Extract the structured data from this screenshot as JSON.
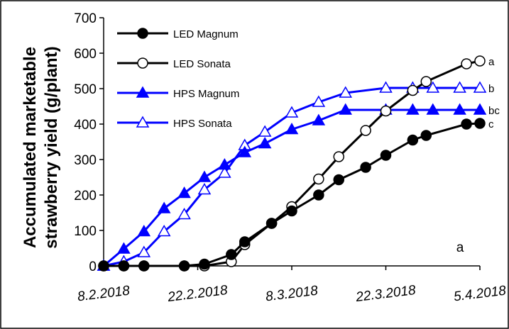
{
  "chart_data": {
    "type": "line",
    "title": "",
    "xlabel": "",
    "ylabel_lines": [
      "Accumulated marketable",
      "strawberry yield (g/plant)"
    ],
    "ylim": [
      0,
      700
    ],
    "yticks": [
      0,
      100,
      200,
      300,
      400,
      500,
      600,
      700
    ],
    "xlim": [
      "2018-02-08",
      "2018-04-05"
    ],
    "xticks": [
      {
        "date": "2018-02-08",
        "label": "8.2.2018"
      },
      {
        "date": "2018-02-22",
        "label": "22.2.2018"
      },
      {
        "date": "2018-03-08",
        "label": "8.3.2018"
      },
      {
        "date": "2018-03-22",
        "label": "22.3.2018"
      },
      {
        "date": "2018-04-05",
        "label": "5.4.2018"
      }
    ],
    "grid": false,
    "legend": "top-left",
    "panel_label": "a",
    "series": [
      {
        "name": "LED Magnum",
        "color": "#000000",
        "marker": "circle",
        "filled": true,
        "end_label": "c",
        "points": [
          {
            "x": "2018-02-08",
            "y": 0
          },
          {
            "x": "2018-02-11",
            "y": 0
          },
          {
            "x": "2018-02-14",
            "y": 0
          },
          {
            "x": "2018-02-20",
            "y": 0
          },
          {
            "x": "2018-02-23",
            "y": 5
          },
          {
            "x": "2018-02-27",
            "y": 32
          },
          {
            "x": "2018-03-01",
            "y": 68
          },
          {
            "x": "2018-03-05",
            "y": 120
          },
          {
            "x": "2018-03-08",
            "y": 155
          },
          {
            "x": "2018-03-12",
            "y": 200
          },
          {
            "x": "2018-03-15",
            "y": 243
          },
          {
            "x": "2018-03-19",
            "y": 278
          },
          {
            "x": "2018-03-22",
            "y": 312
          },
          {
            "x": "2018-03-26",
            "y": 355
          },
          {
            "x": "2018-03-28",
            "y": 368
          },
          {
            "x": "2018-04-03",
            "y": 400
          },
          {
            "x": "2018-04-05",
            "y": 402
          }
        ]
      },
      {
        "name": "LED Sonata",
        "color": "#000000",
        "marker": "circle",
        "filled": false,
        "end_label": "a",
        "points": [
          {
            "x": "2018-02-08",
            "y": 0
          },
          {
            "x": "2018-02-11",
            "y": 0
          },
          {
            "x": "2018-02-14",
            "y": 0
          },
          {
            "x": "2018-02-20",
            "y": 0
          },
          {
            "x": "2018-02-23",
            "y": 0
          },
          {
            "x": "2018-02-27",
            "y": 12
          },
          {
            "x": "2018-03-01",
            "y": 60
          },
          {
            "x": "2018-03-05",
            "y": 120
          },
          {
            "x": "2018-03-08",
            "y": 167
          },
          {
            "x": "2018-03-12",
            "y": 245
          },
          {
            "x": "2018-03-15",
            "y": 308
          },
          {
            "x": "2018-03-19",
            "y": 382
          },
          {
            "x": "2018-03-22",
            "y": 437
          },
          {
            "x": "2018-03-26",
            "y": 495
          },
          {
            "x": "2018-03-28",
            "y": 520
          },
          {
            "x": "2018-04-03",
            "y": 570
          },
          {
            "x": "2018-04-05",
            "y": 578
          }
        ]
      },
      {
        "name": "HPS Magnum",
        "color": "#0000ff",
        "marker": "triangle",
        "filled": true,
        "end_label": "bc",
        "points": [
          {
            "x": "2018-02-08",
            "y": 0
          },
          {
            "x": "2018-02-11",
            "y": 48
          },
          {
            "x": "2018-02-14",
            "y": 97
          },
          {
            "x": "2018-02-17",
            "y": 162
          },
          {
            "x": "2018-02-20",
            "y": 205
          },
          {
            "x": "2018-02-23",
            "y": 250
          },
          {
            "x": "2018-02-26",
            "y": 285
          },
          {
            "x": "2018-03-01",
            "y": 320
          },
          {
            "x": "2018-03-04",
            "y": 345
          },
          {
            "x": "2018-03-08",
            "y": 385
          },
          {
            "x": "2018-03-12",
            "y": 410
          },
          {
            "x": "2018-03-16",
            "y": 440
          },
          {
            "x": "2018-03-22",
            "y": 440
          },
          {
            "x": "2018-03-26",
            "y": 440
          },
          {
            "x": "2018-03-29",
            "y": 440
          },
          {
            "x": "2018-04-02",
            "y": 440
          },
          {
            "x": "2018-04-05",
            "y": 440
          }
        ]
      },
      {
        "name": "HPS Sonata",
        "color": "#0000ff",
        "marker": "triangle",
        "filled": false,
        "end_label": "b",
        "points": [
          {
            "x": "2018-02-08",
            "y": 0
          },
          {
            "x": "2018-02-11",
            "y": 12
          },
          {
            "x": "2018-02-14",
            "y": 38
          },
          {
            "x": "2018-02-17",
            "y": 97
          },
          {
            "x": "2018-02-20",
            "y": 145
          },
          {
            "x": "2018-02-23",
            "y": 215
          },
          {
            "x": "2018-02-26",
            "y": 262
          },
          {
            "x": "2018-03-01",
            "y": 340
          },
          {
            "x": "2018-03-04",
            "y": 378
          },
          {
            "x": "2018-03-08",
            "y": 432
          },
          {
            "x": "2018-03-12",
            "y": 462
          },
          {
            "x": "2018-03-16",
            "y": 488
          },
          {
            "x": "2018-03-22",
            "y": 502
          },
          {
            "x": "2018-03-26",
            "y": 502
          },
          {
            "x": "2018-03-29",
            "y": 502
          },
          {
            "x": "2018-04-02",
            "y": 502
          },
          {
            "x": "2018-04-05",
            "y": 502
          }
        ]
      }
    ]
  }
}
